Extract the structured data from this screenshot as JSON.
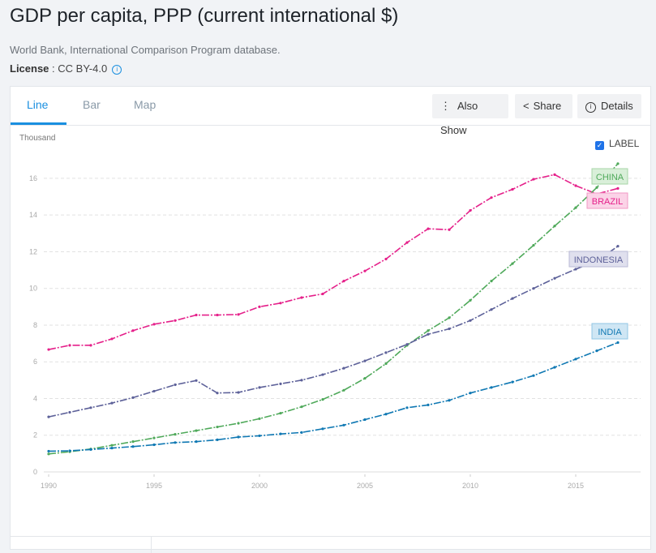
{
  "header": {
    "title": "GDP per capita, PPP (current international $)",
    "source": "World Bank, International Comparison Program database.",
    "license_label": "License",
    "license_value": " : CC BY-4.0",
    "info_icon": "i"
  },
  "tabs": [
    {
      "label": "Line"
    },
    {
      "label": "Bar"
    },
    {
      "label": "Map"
    }
  ],
  "toolbar": {
    "also_show": "Also Show",
    "share": "Share",
    "details": "Details",
    "details_icon": "i"
  },
  "label_toggle": {
    "label": "LABEL",
    "checked": true
  },
  "chart_data": {
    "type": "line",
    "title": "GDP per capita, PPP (current international $)",
    "ylabel": "Thousand",
    "xlabel": "",
    "ylim": [
      0,
      17
    ],
    "yticks": [
      0,
      2,
      4,
      6,
      8,
      10,
      12,
      14,
      16
    ],
    "xticks": [
      1990,
      1995,
      2000,
      2005,
      2010,
      2015
    ],
    "grid": true,
    "x": [
      1990,
      1991,
      1992,
      1993,
      1994,
      1995,
      1996,
      1997,
      1998,
      1999,
      2000,
      2001,
      2002,
      2003,
      2004,
      2005,
      2006,
      2007,
      2008,
      2009,
      2010,
      2011,
      2012,
      2013,
      2014,
      2015,
      2016,
      2017
    ],
    "series": [
      {
        "name": "BRAZIL",
        "color": "#e5208a",
        "values": [
          6.67,
          6.9,
          6.9,
          7.25,
          7.7,
          8.05,
          8.25,
          8.55,
          8.55,
          8.58,
          9.0,
          9.2,
          9.5,
          9.7,
          10.4,
          10.95,
          11.6,
          12.5,
          13.25,
          13.2,
          14.25,
          14.95,
          15.4,
          15.95,
          16.2,
          15.6,
          15.15,
          15.45
        ]
      },
      {
        "name": "CHINA",
        "color": "#4fa95a",
        "values": [
          0.98,
          1.1,
          1.25,
          1.45,
          1.65,
          1.85,
          2.05,
          2.25,
          2.45,
          2.65,
          2.9,
          3.2,
          3.55,
          3.95,
          4.45,
          5.1,
          5.9,
          6.9,
          7.7,
          8.4,
          9.35,
          10.4,
          11.35,
          12.35,
          13.4,
          14.4,
          15.5,
          16.8
        ]
      },
      {
        "name": "INDONESIA",
        "color": "#5d6199",
        "values": [
          3.0,
          3.25,
          3.5,
          3.75,
          4.05,
          4.4,
          4.75,
          4.98,
          4.3,
          4.33,
          4.6,
          4.8,
          5.0,
          5.3,
          5.65,
          6.05,
          6.5,
          6.95,
          7.5,
          7.8,
          8.25,
          8.85,
          9.45,
          10.0,
          10.55,
          11.05,
          11.5,
          12.3
        ]
      },
      {
        "name": "INDIA",
        "color": "#0f78b3",
        "values": [
          1.13,
          1.15,
          1.22,
          1.3,
          1.38,
          1.48,
          1.6,
          1.65,
          1.75,
          1.9,
          1.97,
          2.07,
          2.15,
          2.35,
          2.55,
          2.85,
          3.15,
          3.5,
          3.65,
          3.9,
          4.3,
          4.6,
          4.9,
          5.25,
          5.7,
          6.15,
          6.6,
          7.05
        ]
      }
    ]
  }
}
